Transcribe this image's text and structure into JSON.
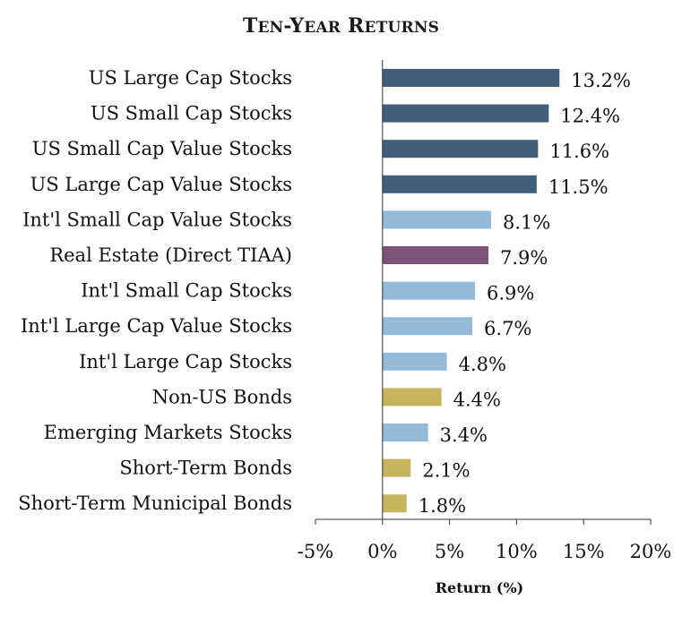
{
  "chart_data": {
    "type": "bar",
    "orientation": "horizontal",
    "title": "Ten-Year Returns",
    "xlabel": "Return (%)",
    "ylabel": "",
    "xlim": [
      -5,
      20
    ],
    "x_ticks": [
      -5,
      0,
      5,
      10,
      15,
      20
    ],
    "x_tick_labels": [
      "-5%",
      "0%",
      "5%",
      "10%",
      "15%",
      "20%"
    ],
    "grid": false,
    "legend": "none",
    "categories": [
      "US Large Cap Stocks",
      "US Small Cap Stocks",
      "US Small Cap Value Stocks",
      "US Large Cap Value Stocks",
      "Int'l Small Cap Value Stocks",
      "Real Estate (Direct TIAA)",
      "Int'l Small Cap Stocks",
      "Int'l Large Cap Value Stocks",
      "Int'l Large Cap Stocks",
      "Non-US Bonds",
      "Emerging Markets Stocks",
      "Short-Term Bonds",
      "Short-Term Municipal Bonds"
    ],
    "values": [
      13.2,
      12.4,
      11.6,
      11.5,
      8.1,
      7.9,
      6.9,
      6.7,
      4.8,
      4.4,
      3.4,
      2.1,
      1.8
    ],
    "value_labels": [
      "13.2%",
      "12.4%",
      "11.6%",
      "11.5%",
      "8.1%",
      "7.9%",
      "6.9%",
      "6.7%",
      "4.8%",
      "4.4%",
      "3.4%",
      "2.1%",
      "1.8%"
    ],
    "bar_colors": [
      "#3f5f7d",
      "#3f5f7d",
      "#3f5f7d",
      "#3f5f7d",
      "#93bbd9",
      "#7e5279",
      "#93bbd9",
      "#93bbd9",
      "#93bbd9",
      "#c8b35f",
      "#93bbd9",
      "#c8b35f",
      "#c8b35f"
    ]
  }
}
